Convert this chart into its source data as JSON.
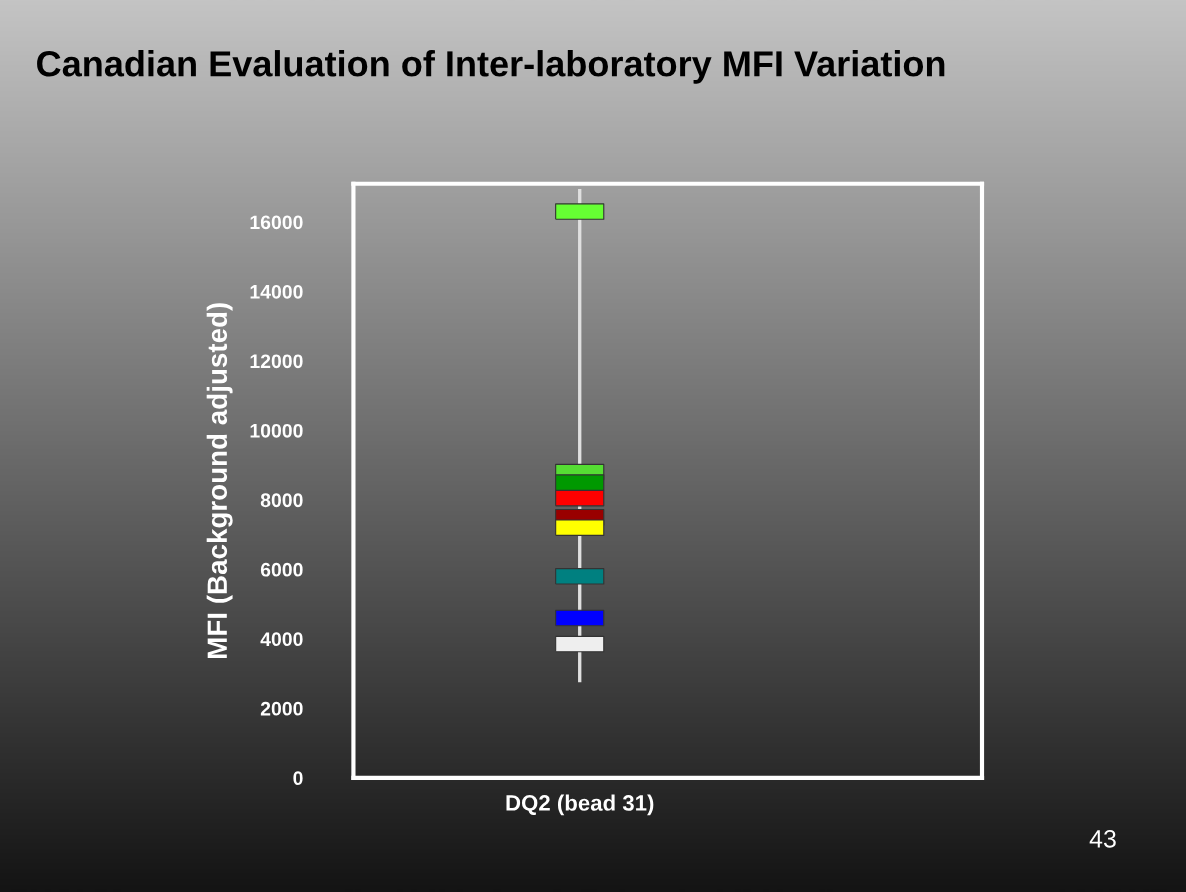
{
  "chart_data": {
    "type": "scatter",
    "title": "Canadian Evaluation of Inter-laboratory MFI Variation",
    "ylabel": "MFI (Background adjusted)",
    "categories": [
      "DQ2 (bead 31)"
    ],
    "series": [
      {
        "type": "line",
        "x": [
          "DQ2 (bead 31)",
          "DQ2 (bead 31)"
        ],
        "values": [
          2800,
          16900
        ],
        "color": "#e0e0e0",
        "marker": "none"
      },
      {
        "x": [
          "DQ2 (bead 31)",
          "DQ2 (bead 31)",
          "DQ2 (bead 31)",
          "DQ2 (bead 31)",
          "DQ2 (bead 31)",
          "DQ2 (bead 31)",
          "DQ2 (bead 31)",
          "DQ2 (bead 31)",
          "DQ2 (bead 31)"
        ],
        "values": [
          16300,
          8800,
          8500,
          8050,
          7500,
          7200,
          5800,
          4600,
          3850
        ],
        "colors": [
          "#66ff33",
          "#55dd33",
          "#009900",
          "#ff0000",
          "#990000",
          "#ffff00",
          "#008080",
          "#0000ff",
          "#eeeeee"
        ],
        "marker": "square"
      }
    ],
    "ylim": [
      0,
      17100
    ],
    "yticks": [
      0,
      2000,
      4000,
      6000,
      8000,
      10000,
      12000,
      14000,
      16000
    ],
    "grid": false,
    "legend": false,
    "annotations": [
      "43"
    ]
  }
}
